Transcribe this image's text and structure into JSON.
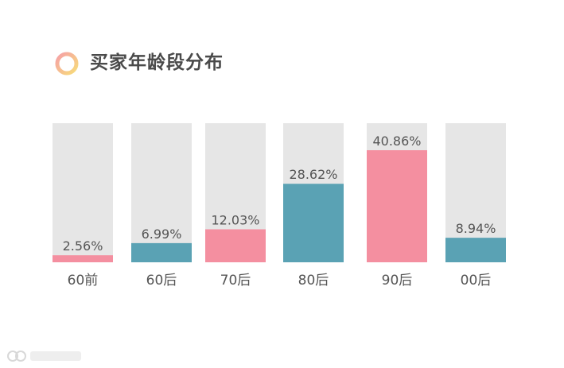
{
  "chart_data": {
    "type": "bar",
    "title": "买家年龄段分布",
    "categories": [
      "60前",
      "60后",
      "70后",
      "80后",
      "90后",
      "00后"
    ],
    "values": [
      2.56,
      6.99,
      12.03,
      28.62,
      40.86,
      8.94
    ],
    "data_labels": [
      "2.56%",
      "6.99%",
      "12.03%",
      "28.62%",
      "40.86%",
      "8.94%"
    ],
    "bar_colors": [
      "#f48fa0",
      "#5aa2b4",
      "#f48fa0",
      "#5aa2b4",
      "#f48fa0",
      "#5aa2b4"
    ],
    "ylim": [
      0,
      45
    ],
    "grid": false,
    "legend": "none"
  },
  "colors": {
    "pink": "#f48fa0",
    "teal": "#5aa2b4",
    "track": "#e6e6e6",
    "icon_ring": "#f5d27a"
  },
  "icons": {
    "title": "ring-icon",
    "watermark": "brand-logo-watermark"
  }
}
